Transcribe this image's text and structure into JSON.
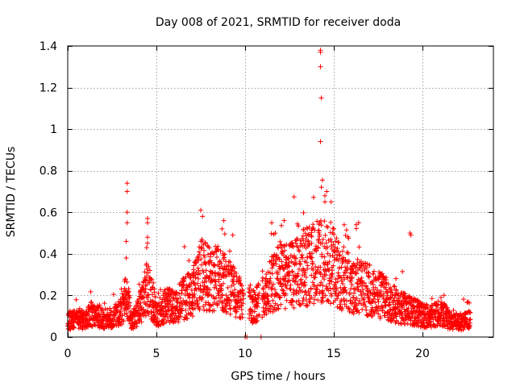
{
  "chart_data": {
    "type": "scatter",
    "title": "Day 008 of 2021, SRMTID for receiver doda",
    "xlabel": "GPS time / hours",
    "ylabel": "SRMTID / TECUs",
    "xlim": [
      0,
      24
    ],
    "ylim": [
      0,
      1.4
    ],
    "xticks": [
      0,
      5,
      10,
      15,
      20
    ],
    "xtick_labels": [
      "0",
      "5",
      "10",
      "15",
      "20"
    ],
    "yticks": [
      0,
      0.2,
      0.4,
      0.6,
      0.8,
      1.0,
      1.2,
      1.4
    ],
    "ytick_labels": [
      "0",
      "0.2",
      "0.4",
      "0.6",
      "0.8",
      "1",
      "1.2",
      "1.4"
    ],
    "grid": true,
    "marker": "+",
    "color": "#ff0000",
    "x_end": 22.7,
    "baseline_profile": [
      [
        0.0,
        0.08
      ],
      [
        0.5,
        0.08
      ],
      [
        1.0,
        0.08
      ],
      [
        1.5,
        0.12
      ],
      [
        2.0,
        0.08
      ],
      [
        2.5,
        0.09
      ],
      [
        3.0,
        0.12
      ],
      [
        3.3,
        0.2
      ],
      [
        3.6,
        0.07
      ],
      [
        4.0,
        0.12
      ],
      [
        4.5,
        0.25
      ],
      [
        5.0,
        0.1
      ],
      [
        5.5,
        0.15
      ],
      [
        6.0,
        0.14
      ],
      [
        6.5,
        0.18
      ],
      [
        7.0,
        0.2
      ],
      [
        7.5,
        0.3
      ],
      [
        8.0,
        0.27
      ],
      [
        8.5,
        0.28
      ],
      [
        9.0,
        0.25
      ],
      [
        9.5,
        0.2
      ],
      [
        10.0,
        0.15
      ],
      [
        10.5,
        0.15
      ],
      [
        11.0,
        0.18
      ],
      [
        11.5,
        0.25
      ],
      [
        12.0,
        0.3
      ],
      [
        12.5,
        0.28
      ],
      [
        13.0,
        0.3
      ],
      [
        13.5,
        0.33
      ],
      [
        14.0,
        0.35
      ],
      [
        14.5,
        0.35
      ],
      [
        15.0,
        0.33
      ],
      [
        15.5,
        0.28
      ],
      [
        16.0,
        0.25
      ],
      [
        16.5,
        0.23
      ],
      [
        17.0,
        0.22
      ],
      [
        17.5,
        0.2
      ],
      [
        18.0,
        0.18
      ],
      [
        18.5,
        0.15
      ],
      [
        19.0,
        0.13
      ],
      [
        19.5,
        0.12
      ],
      [
        20.0,
        0.1
      ],
      [
        20.5,
        0.1
      ],
      [
        21.0,
        0.12
      ],
      [
        21.5,
        0.08
      ],
      [
        22.0,
        0.07
      ],
      [
        22.7,
        0.08
      ]
    ],
    "spikes": [
      [
        3.35,
        0.74
      ],
      [
        3.35,
        0.7
      ],
      [
        3.35,
        0.6
      ],
      [
        3.35,
        0.55
      ],
      [
        3.3,
        0.46
      ],
      [
        3.3,
        0.38
      ],
      [
        4.5,
        0.57
      ],
      [
        4.5,
        0.55
      ],
      [
        4.5,
        0.48
      ],
      [
        4.45,
        0.43
      ],
      [
        7.5,
        0.61
      ],
      [
        7.6,
        0.58
      ],
      [
        8.8,
        0.56
      ],
      [
        8.7,
        0.52
      ],
      [
        11.5,
        0.55
      ],
      [
        11.7,
        0.5
      ],
      [
        12.2,
        0.56
      ],
      [
        14.25,
        1.38
      ],
      [
        14.25,
        1.37
      ],
      [
        14.25,
        1.3
      ],
      [
        14.3,
        1.15
      ],
      [
        14.25,
        0.94
      ],
      [
        14.3,
        0.72
      ],
      [
        14.5,
        0.68
      ],
      [
        14.6,
        0.7
      ],
      [
        14.5,
        0.65
      ],
      [
        15.0,
        0.52
      ],
      [
        19.3,
        0.5
      ],
      [
        19.35,
        0.49
      ]
    ],
    "gap_points": [
      [
        10.0,
        0.0
      ],
      [
        10.1,
        0.0
      ],
      [
        10.9,
        0.0
      ]
    ]
  }
}
